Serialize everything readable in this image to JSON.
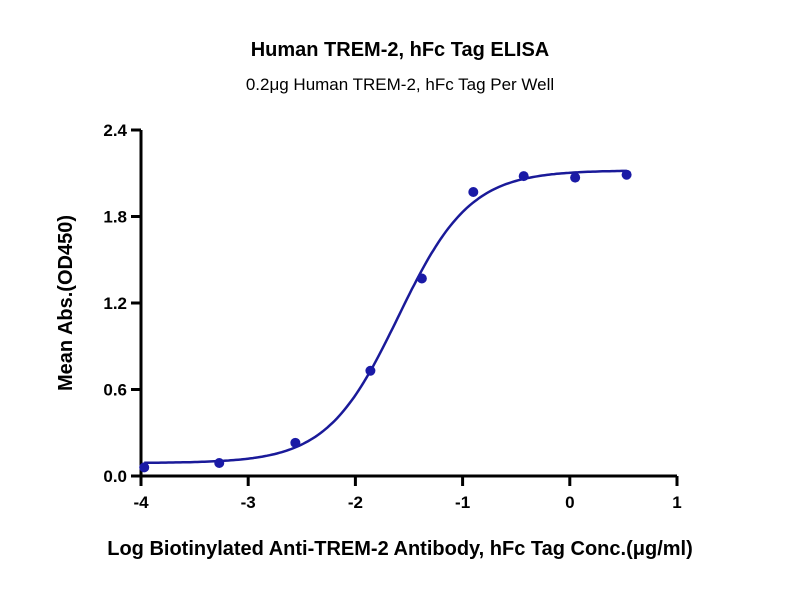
{
  "chart_data": {
    "type": "scatter",
    "title": "Human TREM-2, hFc Tag ELISA",
    "subtitle": "0.2μg Human TREM-2, hFc Tag Per Well",
    "xlabel": "Log Biotinylated Anti-TREM-2 Antibody, hFc Tag Conc.(μg/ml)",
    "ylabel": "Mean Abs.(OD450)",
    "xlim": [
      -4,
      1
    ],
    "ylim": [
      0,
      2.4
    ],
    "xticks": [
      "-4",
      "-3",
      "-2",
      "-1",
      "0",
      "1"
    ],
    "yticks": [
      "0.0",
      "0.6",
      "1.2",
      "1.8",
      "2.4"
    ],
    "grid": false,
    "series": [
      {
        "name": "Mean Abs.",
        "color": "#1a1aa6",
        "x": [
          -3.97,
          -3.27,
          -2.56,
          -1.86,
          -1.38,
          -0.9,
          -0.43,
          0.05,
          0.53
        ],
        "y": [
          0.06,
          0.09,
          0.23,
          0.73,
          1.37,
          1.97,
          2.08,
          2.07,
          2.09
        ]
      }
    ],
    "fit": {
      "model": "4PL",
      "bottom": 0.09,
      "top": 2.12,
      "logEC50": -1.6,
      "hill": 1.3,
      "color": "#1a1a99"
    }
  }
}
